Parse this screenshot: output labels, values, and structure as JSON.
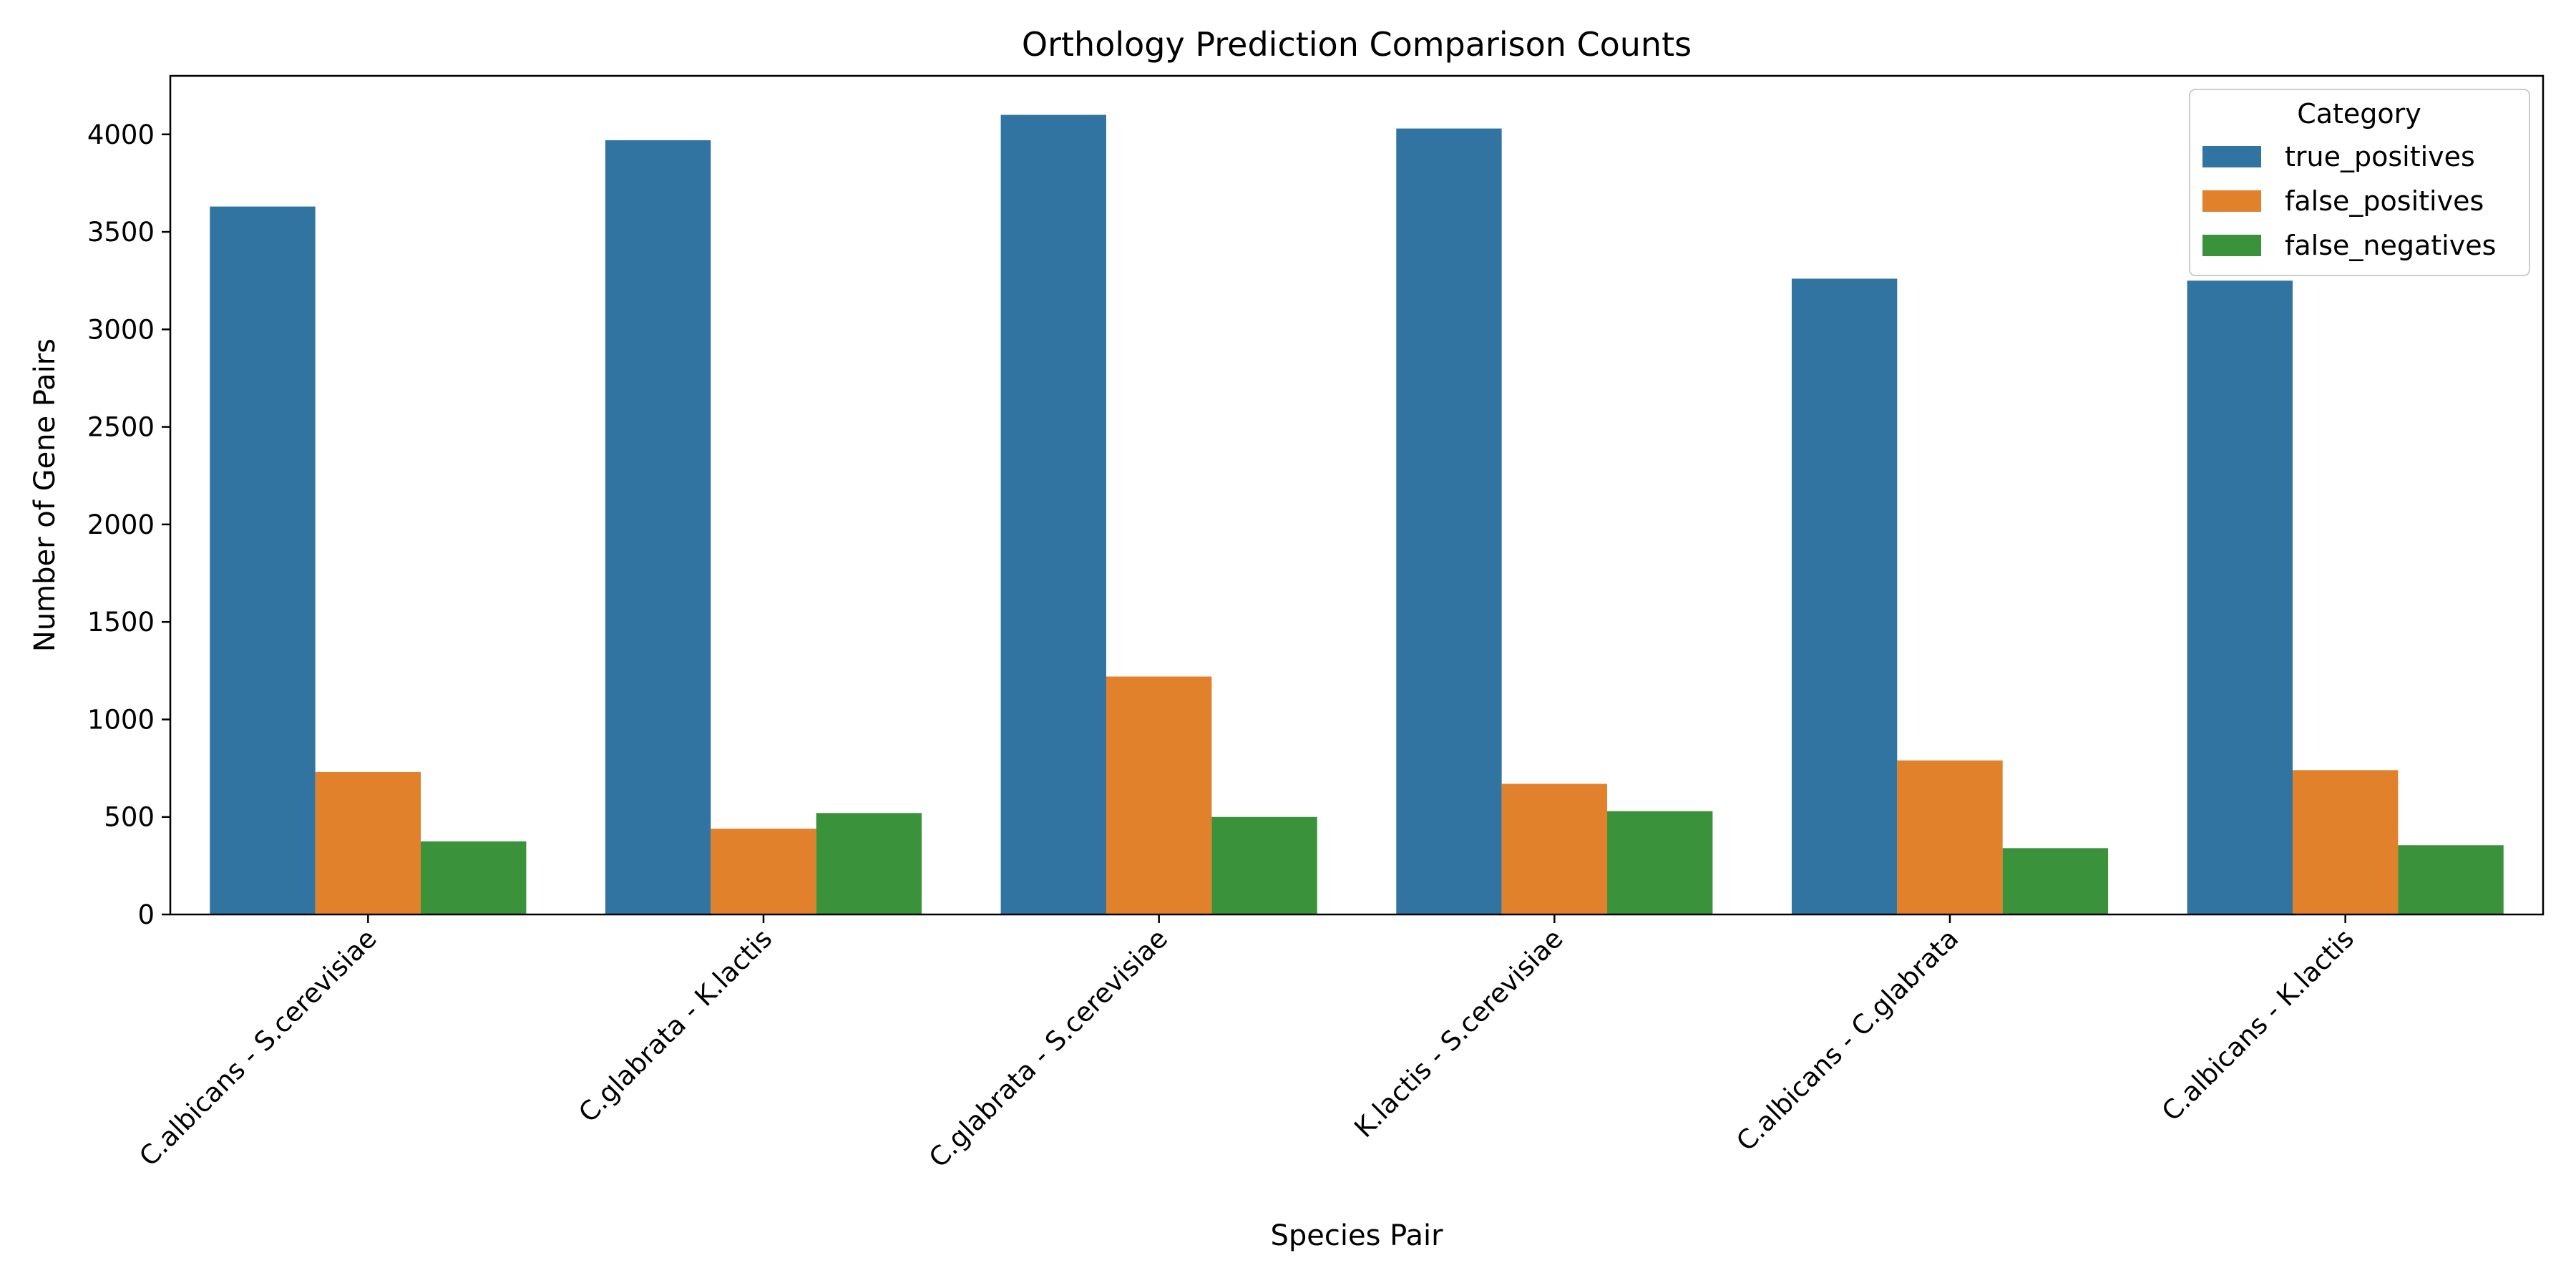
{
  "chart_data": {
    "type": "bar",
    "title": "Orthology Prediction Comparison Counts",
    "xlabel": "Species Pair",
    "ylabel": "Number of Gene Pairs",
    "ylim": [
      0,
      4300
    ],
    "yticks": [
      0,
      500,
      1000,
      1500,
      2000,
      2500,
      3000,
      3500,
      4000
    ],
    "grid": false,
    "legend": {
      "title": "Category",
      "placement": "top-right"
    },
    "categories": [
      "C.albicans - S.cerevisiae",
      "C.glabrata - K.lactis",
      "C.glabrata - S.cerevisiae",
      "K.lactis - S.cerevisiae",
      "C.albicans - C.glabrata",
      "C.albicans - K.lactis"
    ],
    "series": [
      {
        "name": "true_positives",
        "color": "#3274a1",
        "values": [
          3630,
          3970,
          4100,
          4030,
          3260,
          3250
        ]
      },
      {
        "name": "false_positives",
        "color": "#e1812c",
        "values": [
          730,
          440,
          1220,
          670,
          790,
          740
        ]
      },
      {
        "name": "false_negatives",
        "color": "#3a923a",
        "values": [
          375,
          520,
          500,
          530,
          340,
          355
        ]
      }
    ]
  }
}
